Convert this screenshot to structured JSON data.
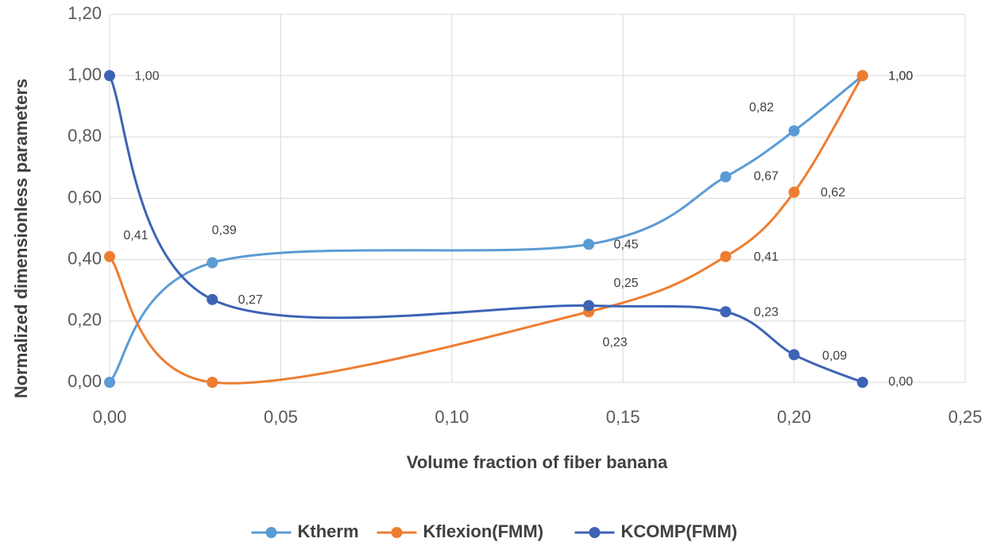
{
  "chart_data": {
    "type": "line",
    "x_label": "Volume fraction of fiber banana",
    "y_label": "Normalized dimensionless parameters",
    "x": [
      0,
      0.03,
      0.14,
      0.18,
      0.2,
      0.22
    ],
    "series": [
      {
        "name": "Ktherm",
        "color": "#5b9bd5",
        "values": [
          0,
          0.39,
          0.45,
          0.67,
          0.82,
          1.0
        ],
        "value_labels": [
          null,
          "0,39",
          "0,45",
          "0,67",
          "0,82",
          "1,00"
        ]
      },
      {
        "name": "Kflexion(FMM)",
        "color": "#ed7d31",
        "values": [
          0.41,
          0,
          0.23,
          0.41,
          0.62,
          1.0
        ],
        "value_labels": [
          "0,41",
          null,
          "0,23",
          "0,41",
          "0,62",
          "1,00"
        ]
      },
      {
        "name": "KCOMP(FMM)",
        "color": "#3d63b5",
        "values": [
          1.0,
          0.27,
          0.25,
          0.23,
          0.09,
          0
        ],
        "value_labels": [
          "1,00",
          "0,27",
          "0,25",
          "0,23",
          "0,09",
          "0,00"
        ]
      }
    ],
    "xlim": [
      0,
      0.25
    ],
    "xticks": [
      {
        "value": 0,
        "label": "0,00"
      },
      {
        "value": 0.05,
        "label": "0,05"
      },
      {
        "value": 0.1,
        "label": "0,10"
      },
      {
        "value": 0.15,
        "label": "0,15"
      },
      {
        "value": 0.2,
        "label": "0,20"
      },
      {
        "value": 0.25,
        "label": "0,25"
      }
    ],
    "ylim": [
      0,
      1.2
    ],
    "yticks": [
      {
        "value": 0,
        "label": "0,00"
      },
      {
        "value": 0.2,
        "label": "0,20"
      },
      {
        "value": 0.4,
        "label": "0,40"
      },
      {
        "value": 0.6,
        "label": "0,60"
      },
      {
        "value": 0.8,
        "label": "0,80"
      },
      {
        "value": 1.0,
        "label": "1,00"
      },
      {
        "value": 1.2,
        "label": "1,20"
      }
    ],
    "grid": true,
    "smooth": true,
    "legend": "bottom"
  }
}
